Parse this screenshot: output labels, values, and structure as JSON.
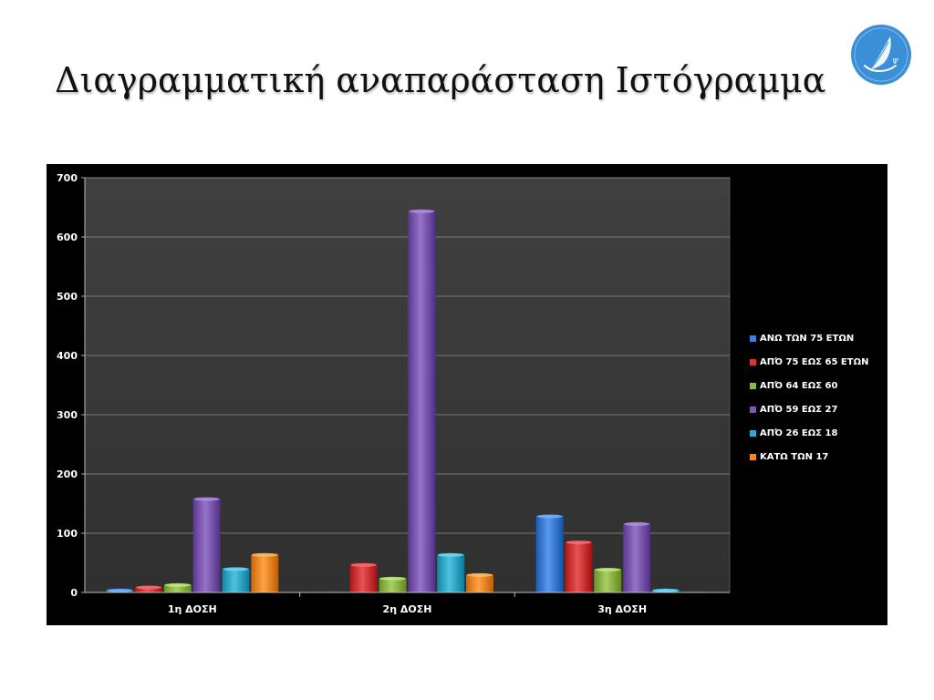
{
  "slide": {
    "title": "Διαγραμματική αναπαράσταση  Ιστόγραμμα"
  },
  "logo": {
    "icon": "quill-feather-icon",
    "color": "#3a8fd6"
  },
  "chart_data": {
    "type": "bar",
    "categories": [
      "1η ΔΟΣΗ",
      "2η ΔΟΣΗ",
      "3η ΔΟΣΗ"
    ],
    "series": [
      {
        "name": "ΑΝΩ ΤΩΝ 75 ΕΤΩΝ",
        "color": "#3f7fd4",
        "values": [
          5,
          1,
          130
        ]
      },
      {
        "name": "ΑΠΌ 75 ΕΩΣ 65 ΕΤΩΝ",
        "color": "#cf3a3a",
        "values": [
          10,
          48,
          86
        ]
      },
      {
        "name": "ΑΠΌ 64 ΕΩΣ 60",
        "color": "#8fb64a",
        "values": [
          14,
          25,
          40
        ]
      },
      {
        "name": "ΑΠΌ 59 ΕΩΣ 27",
        "color": "#7d5bb0",
        "values": [
          159,
          645,
          117
        ]
      },
      {
        "name": "ΑΠΌ 26 ΕΩΣ 18",
        "color": "#36a8c8",
        "values": [
          41,
          65,
          5
        ]
      },
      {
        "name": "ΚΑΤΩ ΤΩΝ 17",
        "color": "#ec8a2c",
        "values": [
          65,
          31,
          1
        ]
      }
    ],
    "ylim": [
      0,
      700
    ],
    "yticks": [
      "0",
      "100",
      "200",
      "300",
      "400",
      "500",
      "600",
      "700"
    ],
    "xlabel": "",
    "ylabel": "",
    "grid": true,
    "legend": "right",
    "plot_background": "#3a3a3a",
    "chart_background": "#000000"
  }
}
